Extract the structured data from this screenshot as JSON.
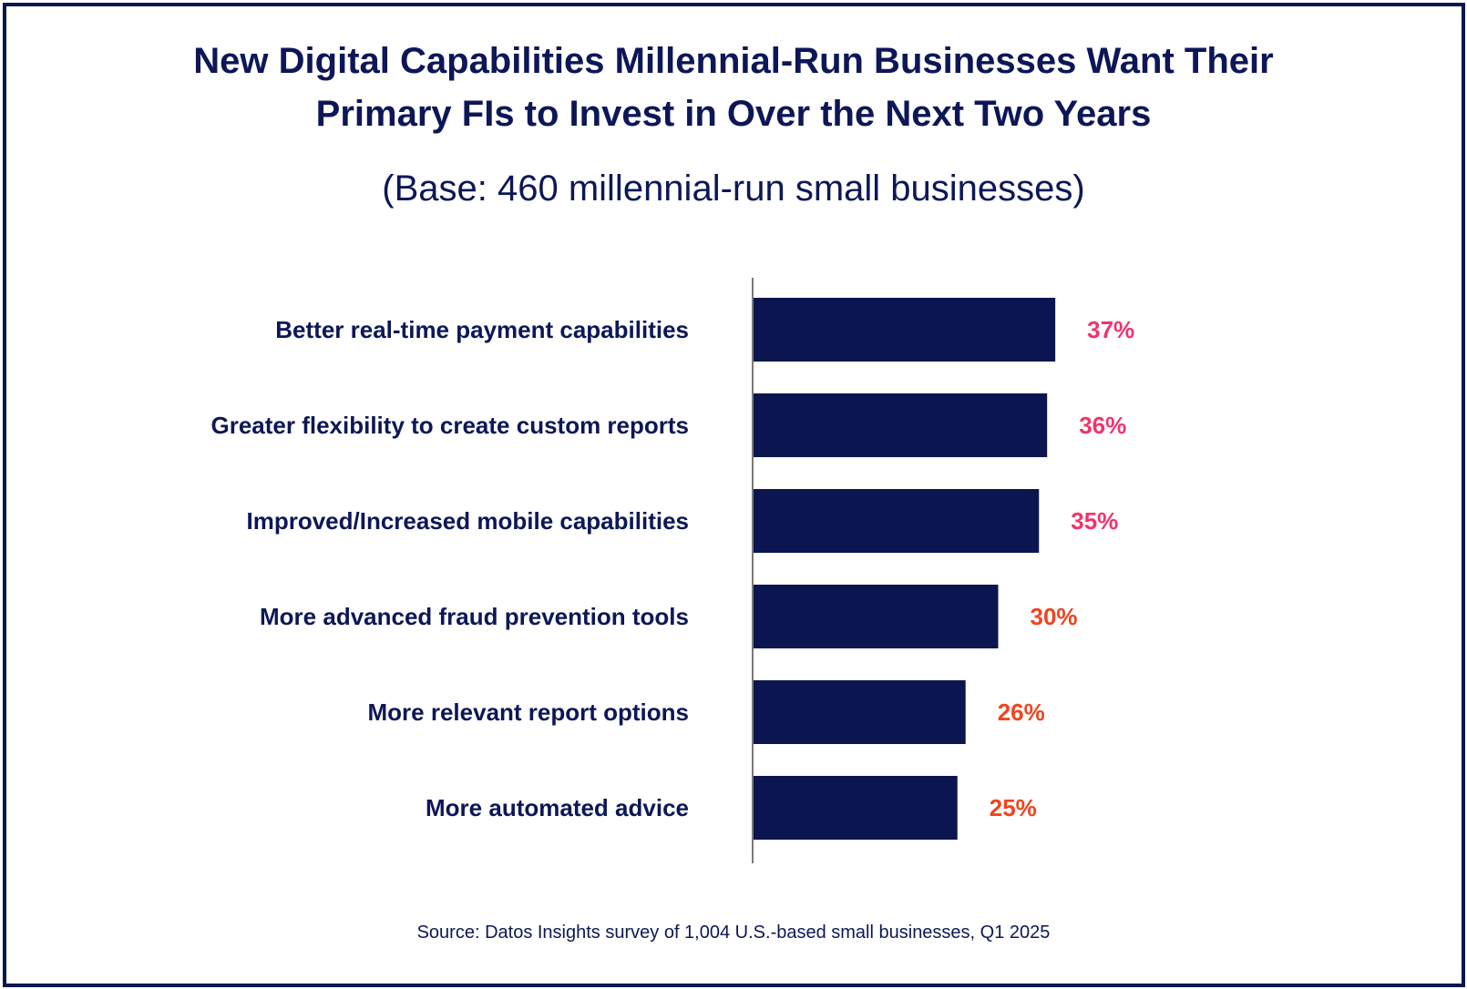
{
  "chart_data": {
    "type": "bar",
    "orientation": "horizontal",
    "title": [
      "New Digital Capabilities Millennial-Run Businesses Want Their",
      "Primary FIs to Invest in Over the Next Two Years"
    ],
    "subtitle": "(Base: 460 millennial-run small businesses)",
    "categories": [
      "Better real-time payment capabilities",
      "Greater flexibility to create custom reports",
      "Improved/Increased mobile capabilities",
      "More advanced fraud prevention tools",
      "More relevant report options",
      "More automated advice"
    ],
    "values": [
      37,
      36,
      35,
      30,
      26,
      25
    ],
    "value_labels": [
      "37%",
      "36%",
      "35%",
      "30%",
      "26%",
      "25%"
    ],
    "unit": "%",
    "source": "Source: Datos Insights survey of 1,004 U.S.-based small businesses, Q1 2025",
    "grid": false,
    "legend": "none",
    "colors": {
      "bar": "#0b1650",
      "axis": "#7a7a7a",
      "category_text": "#0d1757",
      "title_text": "#0d1757",
      "label_pink": "#f0346a",
      "label_orange": "#f0441f",
      "frame": "#0b1650"
    },
    "value_label_colors": [
      "#f0346a",
      "#f0346a",
      "#f0346a",
      "#f0441f",
      "#f0441f",
      "#f0441f"
    ]
  }
}
